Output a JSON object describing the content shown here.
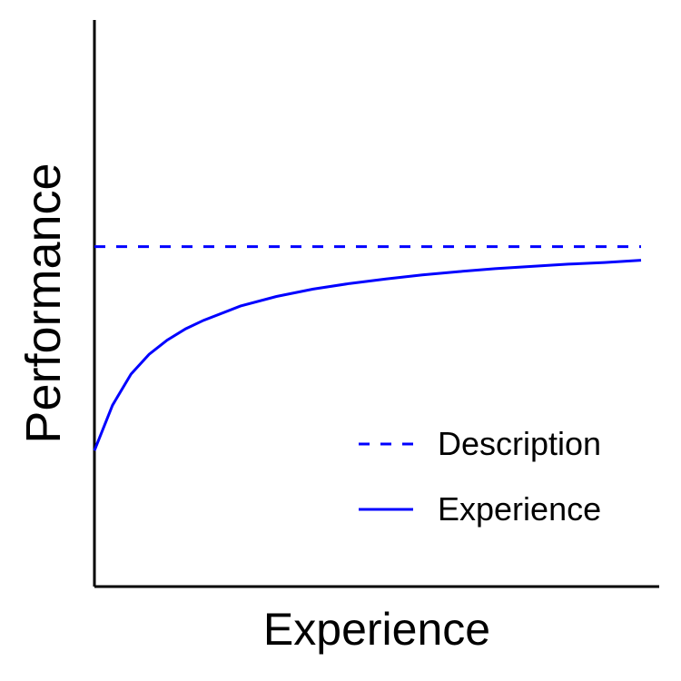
{
  "chart_data": {
    "type": "line",
    "title": "",
    "xlabel": "Experience",
    "ylabel": "Performance",
    "xlim": [
      0,
      100
    ],
    "ylim": [
      0,
      100
    ],
    "axis_ticks": false,
    "grid": false,
    "legend_position": "bottom-right",
    "series": [
      {
        "name": "Description",
        "style": "dashed",
        "color": "#0000ff",
        "x": [
          0,
          100
        ],
        "y": [
          60,
          60
        ]
      },
      {
        "name": "Experience",
        "style": "solid",
        "color": "#0000ff",
        "x": [
          0,
          3.3,
          6.7,
          10,
          13.3,
          16.7,
          20,
          26.7,
          33.3,
          40,
          46.7,
          53.3,
          60,
          66.7,
          73.3,
          80,
          86.7,
          93.3,
          100
        ],
        "y": [
          24,
          32,
          37.5,
          41,
          43.5,
          45.5,
          47,
          49.5,
          51.2,
          52.5,
          53.5,
          54.3,
          55,
          55.6,
          56.1,
          56.5,
          56.9,
          57.2,
          57.6
        ]
      }
    ]
  }
}
